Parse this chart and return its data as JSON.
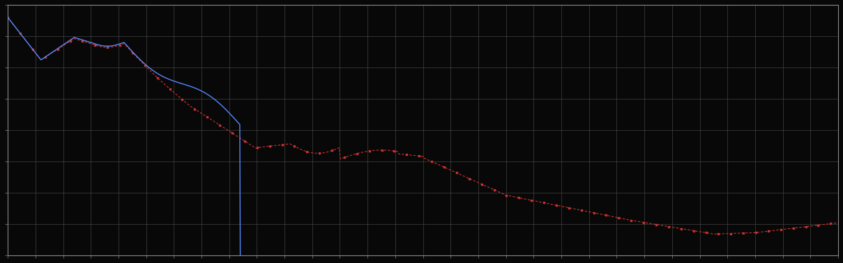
{
  "background_color": "#080808",
  "plot_bg_color": "#080808",
  "grid_color": "#484848",
  "blue_line_color": "#5588ff",
  "red_line_color": "#cc3333",
  "figsize": [
    12.09,
    3.78
  ],
  "dpi": 100,
  "xlim": [
    0,
    100
  ],
  "ylim": [
    0,
    10
  ],
  "spine_color": "#888888"
}
